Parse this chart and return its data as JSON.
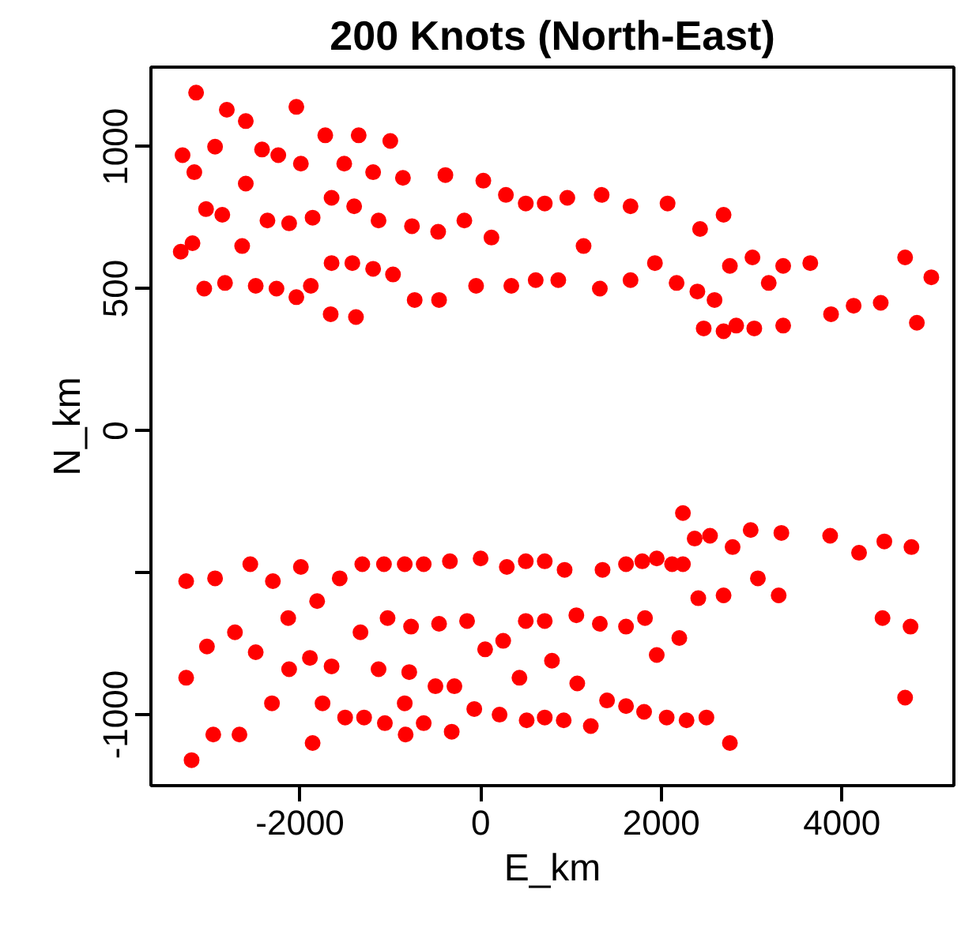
{
  "chart_data": {
    "type": "scatter",
    "title": "200 Knots (North-East)",
    "xlabel": "E_km",
    "ylabel": "N_km",
    "x": [
      -3150,
      -2810,
      -2600,
      -2040,
      -1720,
      -1350,
      -1000,
      -3300,
      -2940,
      -2420,
      -2240,
      -1990,
      -3170,
      -2600,
      -1510,
      -1190,
      -860,
      -390,
      30,
      280,
      500,
      710,
      -3040,
      -2860,
      -1650,
      -1400,
      -2360,
      -2120,
      -1860,
      -1130,
      -760,
      -470,
      -180,
      120,
      -3190,
      -3320,
      -2640,
      -1650,
      -1420,
      -1190,
      -970,
      -3060,
      -2830,
      -2490,
      -2260,
      -2040,
      -1880,
      -1660,
      -1380,
      -730,
      -460,
      -50,
      340,
      610,
      860,
      960,
      1340,
      1660,
      2070,
      2430,
      2690,
      1140,
      1320,
      1660,
      1930,
      2170,
      2400,
      2590,
      2760,
      3010,
      3190,
      3350,
      3650,
      4700,
      4990,
      2470,
      2690,
      2830,
      3030,
      3350,
      3880,
      4130,
      4430,
      4830,
      -3260,
      -2940,
      -2550,
      -2300,
      -1990,
      -1560,
      -1310,
      -1070,
      -840,
      -630,
      -340,
      0,
      290,
      500,
      710,
      930,
      -1810,
      -2130,
      -3030,
      -2720,
      -2490,
      -1330,
      -1030,
      -770,
      -460,
      -150,
      50,
      250,
      500,
      710,
      -3260,
      -2120,
      -1890,
      -1650,
      -1130,
      -790,
      -500,
      -290,
      430,
      790,
      -2310,
      -1750,
      -840,
      -70,
      210,
      -1500,
      -1290,
      -1060,
      -630,
      510,
      710,
      920,
      -2960,
      -2670,
      -830,
      -320,
      -1860,
      -3200,
      1350,
      1610,
      1790,
      1950,
      2120,
      2240,
      2240,
      2370,
      2540,
      2790,
      2990,
      3330,
      3870,
      4190,
      4470,
      4770,
      2410,
      2690,
      3070,
      3300,
      1060,
      1320,
      1610,
      1820,
      2200,
      1950,
      4450,
      4760,
      1070,
      1400,
      1610,
      1810,
      2060,
      2280,
      2500,
      2760,
      4700,
      1220
    ],
    "values": [
      1190,
      1130,
      1090,
      1140,
      1040,
      1040,
      1020,
      970,
      1000,
      990,
      970,
      940,
      910,
      870,
      940,
      910,
      890,
      900,
      880,
      830,
      800,
      800,
      780,
      760,
      820,
      790,
      740,
      730,
      750,
      740,
      720,
      700,
      740,
      680,
      660,
      630,
      650,
      590,
      590,
      570,
      550,
      500,
      520,
      510,
      500,
      470,
      510,
      410,
      400,
      460,
      460,
      510,
      510,
      530,
      530,
      820,
      830,
      790,
      800,
      710,
      760,
      650,
      500,
      530,
      590,
      520,
      490,
      460,
      580,
      610,
      520,
      580,
      590,
      610,
      540,
      360,
      350,
      370,
      360,
      370,
      410,
      440,
      450,
      380,
      -530,
      -520,
      -470,
      -530,
      -480,
      -520,
      -470,
      -470,
      -470,
      -470,
      -460,
      -450,
      -480,
      -460,
      -460,
      -490,
      -600,
      -660,
      -760,
      -710,
      -780,
      -710,
      -660,
      -690,
      -680,
      -670,
      -770,
      -740,
      -670,
      -670,
      -870,
      -840,
      -800,
      -830,
      -840,
      -850,
      -900,
      -900,
      -870,
      -810,
      -960,
      -960,
      -960,
      -980,
      -1000,
      -1010,
      -1010,
      -1030,
      -1030,
      -1020,
      -1010,
      -1020,
      -1070,
      -1070,
      -1070,
      -1060,
      -1100,
      -1160,
      -490,
      -470,
      -460,
      -450,
      -470,
      -470,
      -290,
      -380,
      -370,
      -410,
      -350,
      -360,
      -370,
      -430,
      -390,
      -410,
      -590,
      -580,
      -520,
      -580,
      -650,
      -680,
      -690,
      -660,
      -730,
      -790,
      -660,
      -690,
      -890,
      -950,
      -970,
      -990,
      -1010,
      -1020,
      -1010,
      -1100,
      -940,
      -1040
    ],
    "color": "#ff0000",
    "marker": "circle",
    "xlim": [
      -3650,
      5240
    ],
    "ylim": [
      -1250,
      1280
    ],
    "xticks": [
      -2000,
      0,
      2000,
      4000
    ],
    "yticks": [
      -1000,
      {
        "value": -500,
        "label": null
      },
      0,
      500,
      1000
    ],
    "grid": false
  }
}
